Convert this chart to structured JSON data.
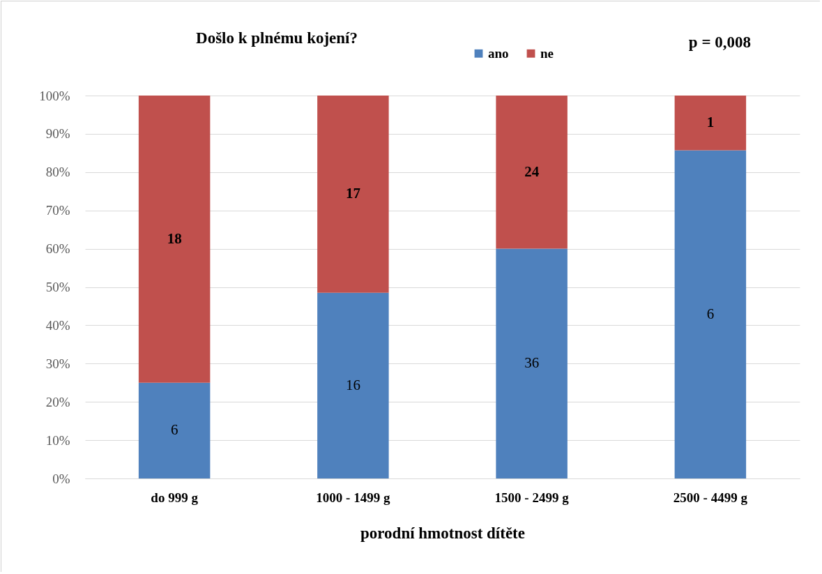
{
  "chart_data": {
    "type": "bar",
    "title": "Došlo k plnému kojení?",
    "xlabel": "porodní hmotnost dítěte",
    "categories": [
      "do 999 g",
      "1000 - 1499 g",
      "1500 - 2499 g",
      "2500 - 4499 g"
    ],
    "series": [
      {
        "name": "ano",
        "color": "#4f81bd",
        "values": [
          25,
          48.5,
          60,
          85.7
        ]
      },
      {
        "name": "ne",
        "color": "#c0504d",
        "values": [
          75,
          51.5,
          40,
          14.3
        ]
      }
    ],
    "annotations": [
      "p = 0,008",
      "6",
      "16",
      "36",
      "6",
      "18",
      "17",
      "24",
      "1"
    ],
    "stacked": true,
    "ylim": [
      0,
      100
    ],
    "yticks": [
      {
        "value": 0,
        "label": "0%"
      },
      {
        "value": 10,
        "label": "10%"
      },
      {
        "value": 20,
        "label": "20%"
      },
      {
        "value": 30,
        "label": "30%"
      },
      {
        "value": 40,
        "label": "40%"
      },
      {
        "value": 50,
        "label": "50%"
      },
      {
        "value": 60,
        "label": "60%"
      },
      {
        "value": 70,
        "label": "70%"
      },
      {
        "value": 80,
        "label": "80%"
      },
      {
        "value": 90,
        "label": "90%"
      },
      {
        "value": 100,
        "label": "100%"
      }
    ],
    "grid": "y",
    "legend": "top"
  }
}
